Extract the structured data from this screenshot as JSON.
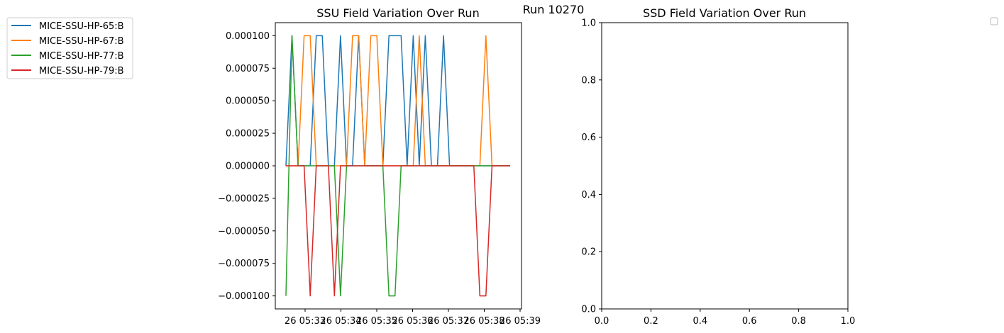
{
  "suptitle": "Run 10270",
  "chart_data": [
    {
      "type": "line",
      "title": "SSU Field Variation Over Run",
      "xlabel": "",
      "ylabel": "",
      "x_tick_labels": [
        "26 05:33",
        "26 05:34",
        "26 05:35",
        "26 05:36",
        "26 05:37",
        "26 05:38",
        "26 05:39"
      ],
      "y_tick_labels": [
        "0.000100",
        "0.000075",
        "0.000050",
        "0.000025",
        "0.000000",
        "−0.000025",
        "−0.000050",
        "−0.000075",
        "−0.000100"
      ],
      "ylim": [
        -0.00011,
        0.00011
      ],
      "legend": "left, outside",
      "series": [
        {
          "name": "MICE-SSU-HP-65:B",
          "color": "#1f77b4",
          "x": [
            0,
            1,
            2,
            3,
            4,
            5,
            6,
            7,
            8,
            9,
            10,
            11,
            12,
            13,
            14,
            15,
            16,
            17,
            18,
            19,
            20,
            21,
            22,
            23,
            24,
            25,
            26,
            27,
            28,
            29,
            30,
            31,
            32,
            33,
            34,
            35,
            36,
            37
          ],
          "values": [
            0,
            0.0001,
            0,
            0,
            0,
            0.0001,
            0.0001,
            0,
            0,
            0.0001,
            0,
            0,
            0.0001,
            0,
            0,
            0,
            0,
            0.0001,
            0.0001,
            0.0001,
            0,
            0.0001,
            0,
            0.0001,
            0,
            0,
            0.0001,
            0,
            0,
            0,
            0,
            0,
            0,
            0,
            0,
            0,
            0,
            0
          ]
        },
        {
          "name": "MICE-SSU-HP-67:B",
          "color": "#ff7f0e",
          "x": [
            0,
            1,
            2,
            3,
            4,
            5,
            6,
            7,
            8,
            9,
            10,
            11,
            12,
            13,
            14,
            15,
            16,
            17,
            18,
            19,
            20,
            21,
            22,
            23,
            24,
            25,
            26,
            27,
            28,
            29,
            30,
            31,
            32,
            33,
            34,
            35,
            36,
            37
          ],
          "values": [
            0,
            0,
            0,
            0.0001,
            0.0001,
            0,
            0,
            0,
            0,
            0,
            0,
            0.0001,
            0.0001,
            0,
            0.0001,
            0.0001,
            0,
            0,
            0,
            0,
            0,
            0,
            0.0001,
            0,
            0,
            0,
            0,
            0,
            0,
            0,
            0,
            0,
            0,
            0.0001,
            0,
            0,
            0,
            0
          ]
        },
        {
          "name": "MICE-SSU-HP-77:B",
          "color": "#2ca02c",
          "x": [
            0,
            1,
            2,
            3,
            4,
            5,
            6,
            7,
            8,
            9,
            10,
            11,
            12,
            13,
            14,
            15,
            16,
            17,
            18,
            19,
            20,
            21,
            22,
            23,
            24,
            25,
            26,
            27,
            28,
            29,
            30,
            31,
            32,
            33,
            34,
            35,
            36,
            37
          ],
          "values": [
            -0.0001,
            0.0001,
            0,
            0,
            0,
            0,
            0,
            0,
            0,
            -0.0001,
            0,
            0,
            0,
            0,
            0,
            0,
            0,
            -0.0001,
            -0.0001,
            0,
            0,
            0,
            0,
            0,
            0,
            0,
            0,
            0,
            0,
            0,
            0,
            0,
            0,
            0,
            0,
            0,
            0,
            0
          ]
        },
        {
          "name": "MICE-SSU-HP-79:B",
          "color": "#d62728",
          "x": [
            0,
            1,
            2,
            3,
            4,
            5,
            6,
            7,
            8,
            9,
            10,
            11,
            12,
            13,
            14,
            15,
            16,
            17,
            18,
            19,
            20,
            21,
            22,
            23,
            24,
            25,
            26,
            27,
            28,
            29,
            30,
            31,
            32,
            33,
            34,
            35,
            36,
            37
          ],
          "values": [
            0,
            0,
            0,
            0,
            -0.0001,
            0,
            0,
            0,
            -0.0001,
            0,
            0,
            0,
            0,
            0,
            0,
            0,
            0,
            0,
            0,
            0,
            0,
            0,
            0,
            0,
            0,
            0,
            0,
            0,
            0,
            0,
            0,
            0,
            -0.0001,
            -0.0001,
            0,
            0,
            0,
            0
          ]
        }
      ]
    },
    {
      "type": "line",
      "title": "SSD Field Variation Over Run",
      "xlabel": "",
      "ylabel": "",
      "x_tick_labels": [
        "0.0",
        "0.2",
        "0.4",
        "0.6",
        "0.8",
        "1.0"
      ],
      "y_tick_labels": [
        "0.0",
        "0.2",
        "0.4",
        "0.6",
        "0.8",
        "1.0"
      ],
      "xlim": [
        0,
        1
      ],
      "ylim": [
        0,
        1
      ],
      "series": []
    }
  ]
}
